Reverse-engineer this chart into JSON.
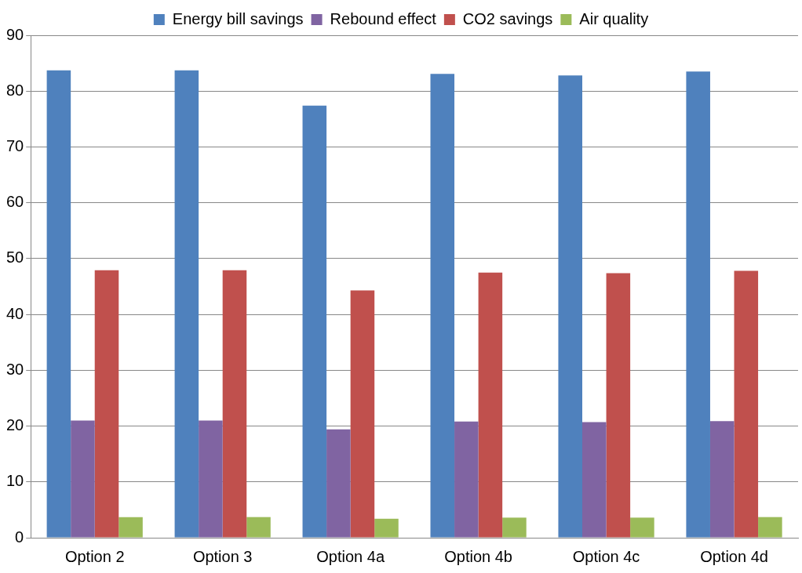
{
  "chart_data": {
    "type": "bar",
    "categories": [
      "Option 2",
      "Option 3",
      "Option 4a",
      "Option 4b",
      "Option 4c",
      "Option 4d"
    ],
    "series": [
      {
        "name": "Energy bill savings",
        "color": "#4f81bd",
        "values": [
          83.7,
          83.7,
          77.4,
          83.1,
          82.8,
          83.5
        ]
      },
      {
        "name": "Rebound effect",
        "color": "#8064a2",
        "values": [
          21.0,
          21.0,
          19.4,
          20.8,
          20.7,
          20.9
        ]
      },
      {
        "name": "CO2 savings",
        "color": "#c0504d",
        "values": [
          47.9,
          47.9,
          44.3,
          47.5,
          47.4,
          47.8
        ]
      },
      {
        "name": "Air quality",
        "color": "#9bbb59",
        "values": [
          3.7,
          3.7,
          3.4,
          3.6,
          3.6,
          3.7
        ]
      }
    ],
    "ylim": [
      0,
      90
    ],
    "yticks": [
      0,
      10,
      20,
      30,
      40,
      50,
      60,
      70,
      80,
      90
    ],
    "grid": "y",
    "legend": "top"
  }
}
